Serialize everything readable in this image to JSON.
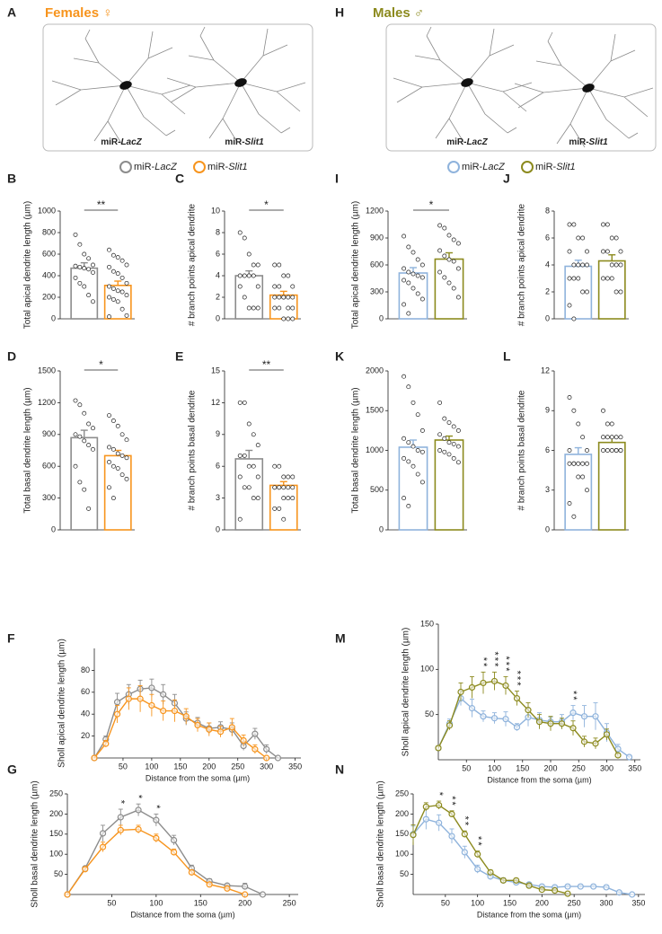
{
  "sexes": [
    {
      "letter": "A",
      "title": "Females ♀",
      "color": "#f7941d",
      "image_labels": [
        "miR-LacZ",
        "miR-Slit1"
      ],
      "legend": [
        {
          "name": "miR-LacZ",
          "color": "#8c8c8c"
        },
        {
          "name": "miR-Slit1",
          "color": "#f7941d"
        }
      ]
    },
    {
      "letter": "H",
      "title": "Males ♂",
      "color": "#8c8a1e",
      "image_labels": [
        "miR-LacZ",
        "miR-Slit1"
      ],
      "legend": [
        {
          "name": "miR-LacZ",
          "color": "#8fb3dc"
        },
        {
          "name": "miR-Slit1",
          "color": "#8c8a1e"
        }
      ]
    }
  ],
  "chart_data": [
    {
      "type": "bar",
      "panel": "B",
      "ylabel": "Total apical dendrite length (µm)",
      "colors": [
        "#8c8c8c",
        "#f7941d"
      ],
      "values": [
        470,
        310
      ],
      "errors": [
        50,
        40
      ],
      "significance": "**",
      "points": [
        [
          780,
          690,
          600,
          560,
          500,
          490,
          480,
          470,
          460,
          430,
          380,
          330,
          300,
          220,
          160
        ],
        [
          640,
          590,
          570,
          540,
          500,
          480,
          440,
          420,
          380,
          330,
          300,
          280,
          260,
          250,
          220,
          200,
          180,
          160,
          90,
          30,
          20
        ]
      ],
      "ylim": [
        0,
        1000
      ],
      "yticks": [
        0,
        200,
        400,
        600,
        800,
        1000
      ]
    },
    {
      "type": "bar",
      "panel": "C",
      "ylabel": "# branch points apical dendrite",
      "colors": [
        "#8c8c8c",
        "#f7941d"
      ],
      "values": [
        4.0,
        2.2
      ],
      "errors": [
        0.45,
        0.35
      ],
      "significance": "*",
      "points": [
        [
          8,
          7.5,
          6,
          5,
          5,
          4,
          4,
          4,
          4,
          3,
          3,
          2,
          1,
          1,
          1
        ],
        [
          5,
          5,
          4,
          4,
          3,
          3,
          3,
          2,
          2,
          2,
          2,
          2,
          2,
          1,
          1,
          1,
          1,
          0,
          0,
          0
        ]
      ],
      "ylim": [
        0,
        10
      ],
      "yticks": [
        0,
        2,
        4,
        6,
        8,
        10
      ]
    },
    {
      "type": "bar",
      "panel": "I",
      "ylabel": "Total apical dendrite length (µm)",
      "colors": [
        "#8fb3dc",
        "#8c8a1e"
      ],
      "values": [
        510,
        665
      ],
      "errors": [
        60,
        70
      ],
      "significance": "*",
      "points": [
        [
          920,
          800,
          740,
          660,
          600,
          560,
          520,
          500,
          480,
          460,
          430,
          400,
          340,
          280,
          220,
          160,
          60
        ],
        [
          1040,
          1010,
          930,
          880,
          840,
          760,
          700,
          660,
          640,
          560,
          520,
          460,
          400,
          340,
          240
        ]
      ],
      "ylim": [
        0,
        1200
      ],
      "yticks": [
        0,
        300,
        600,
        900,
        1200
      ]
    },
    {
      "type": "bar",
      "panel": "J",
      "ylabel": "# branch points apical dendrite",
      "colors": [
        "#8fb3dc",
        "#8c8a1e"
      ],
      "values": [
        3.9,
        4.3
      ],
      "errors": [
        0.45,
        0.45
      ],
      "points": [
        [
          7,
          7,
          6,
          6,
          5,
          5,
          4,
          4,
          4,
          4,
          3,
          3,
          3,
          2,
          2,
          1,
          0
        ],
        [
          7,
          7,
          6,
          6,
          5,
          5,
          5,
          4,
          4,
          4,
          3,
          3,
          3,
          2,
          2
        ]
      ],
      "ylim": [
        0,
        8
      ],
      "yticks": [
        0,
        2,
        4,
        6,
        8
      ]
    },
    {
      "type": "bar",
      "panel": "D",
      "ylabel": "Total basal dendrite length (µm)",
      "colors": [
        "#8c8c8c",
        "#f7941d"
      ],
      "values": [
        870,
        700
      ],
      "errors": [
        70,
        50
      ],
      "significance": "*",
      "points": [
        [
          1220,
          1180,
          1100,
          1000,
          960,
          900,
          880,
          840,
          800,
          760,
          600,
          450,
          380,
          200
        ],
        [
          1080,
          1030,
          980,
          900,
          850,
          780,
          760,
          720,
          700,
          680,
          640,
          600,
          580,
          520,
          480,
          400,
          300
        ]
      ],
      "ylim": [
        0,
        1500
      ],
      "yticks": [
        0,
        300,
        600,
        900,
        1200,
        1500
      ]
    },
    {
      "type": "bar",
      "panel": "E",
      "ylabel": "# branch points basal dendrite",
      "colors": [
        "#8c8c8c",
        "#f7941d"
      ],
      "values": [
        6.7,
        4.2
      ],
      "errors": [
        0.8,
        0.35
      ],
      "significance": "**",
      "points": [
        [
          12,
          12,
          10,
          9,
          8,
          7,
          7,
          6,
          6,
          5,
          5,
          4,
          4,
          3,
          3,
          1
        ],
        [
          6,
          6,
          5,
          5,
          5,
          4,
          4,
          4,
          4,
          4,
          4,
          4,
          3,
          3,
          3,
          2,
          2,
          1
        ]
      ],
      "ylim": [
        0,
        15
      ],
      "yticks": [
        0,
        3,
        6,
        9,
        12,
        15
      ]
    },
    {
      "type": "bar",
      "panel": "K",
      "ylabel": "Total basal dendrite length (µm)",
      "colors": [
        "#8fb3dc",
        "#8c8a1e"
      ],
      "values": [
        1040,
        1130
      ],
      "errors": [
        90,
        50
      ],
      "points": [
        [
          1930,
          1800,
          1600,
          1450,
          1250,
          1150,
          1100,
          1050,
          1000,
          980,
          900,
          860,
          800,
          700,
          600,
          400,
          300
        ],
        [
          1600,
          1400,
          1350,
          1300,
          1250,
          1200,
          1150,
          1100,
          1080,
          1050,
          1000,
          980,
          950,
          900,
          850
        ]
      ],
      "ylim": [
        0,
        2000
      ],
      "yticks": [
        0,
        500,
        1000,
        1500,
        2000
      ]
    },
    {
      "type": "bar",
      "panel": "L",
      "ylabel": "# branch points basal dendrite",
      "colors": [
        "#8fb3dc",
        "#8c8a1e"
      ],
      "values": [
        5.7,
        6.6
      ],
      "errors": [
        0.5,
        0.4
      ],
      "points": [
        [
          10,
          9,
          8,
          7,
          6,
          6,
          5,
          5,
          5,
          5,
          5,
          5,
          4,
          4,
          3,
          2,
          1
        ],
        [
          9,
          8,
          8,
          7,
          7,
          7,
          7,
          7,
          6,
          6,
          6,
          6,
          6,
          6,
          6
        ]
      ],
      "ylim": [
        0,
        12
      ],
      "yticks": [
        0,
        3,
        6,
        9,
        12
      ]
    },
    {
      "type": "line",
      "panel": "F",
      "ylabel": "Sholl apical dendrite length (µm)",
      "xlabel": "Distance from the soma (µm)",
      "x": [
        0,
        20,
        40,
        60,
        80,
        100,
        120,
        140,
        160,
        180,
        200,
        220,
        240,
        260,
        280,
        300,
        320
      ],
      "series": [
        {
          "color": "#8c8c8c",
          "values": [
            0,
            17,
            51,
            58,
            63,
            64,
            58,
            50,
            36,
            32,
            27,
            28,
            26,
            11,
            22,
            8,
            0
          ],
          "errors": [
            0,
            3,
            8,
            9,
            8,
            8,
            9,
            8,
            6,
            5,
            5,
            5,
            6,
            4,
            5,
            4,
            0
          ]
        },
        {
          "color": "#f7941d",
          "values": [
            0,
            13,
            40,
            54,
            54,
            48,
            43,
            43,
            38,
            30,
            26,
            24,
            28,
            16,
            8,
            0,
            null
          ],
          "errors": [
            0,
            3,
            8,
            10,
            12,
            10,
            9,
            10,
            7,
            6,
            6,
            5,
            8,
            5,
            4,
            0,
            null
          ]
        }
      ],
      "annotations": [],
      "xlim": [
        0,
        360
      ],
      "xticks": [
        50,
        100,
        150,
        200,
        250,
        300,
        350
      ],
      "ylim": [
        0,
        100
      ],
      "yticks": [
        20,
        40,
        60,
        80
      ]
    },
    {
      "type": "line",
      "panel": "M",
      "ylabel": "Sholl apical dendrite length (µm)",
      "xlabel": "Distance from the soma (µm)",
      "x": [
        0,
        20,
        40,
        60,
        80,
        100,
        120,
        140,
        160,
        180,
        200,
        220,
        240,
        260,
        280,
        300,
        320,
        340
      ],
      "series": [
        {
          "color": "#8fb3dc",
          "values": [
            13,
            40,
            68,
            57,
            48,
            46,
            45,
            36,
            47,
            44,
            42,
            42,
            52,
            48,
            48,
            30,
            12,
            3
          ],
          "errors": [
            2,
            5,
            8,
            10,
            6,
            6,
            8,
            4,
            10,
            8,
            5,
            8,
            8,
            12,
            15,
            10,
            5,
            1
          ]
        },
        {
          "color": "#8c8a1e",
          "values": [
            13,
            38,
            75,
            80,
            85,
            87,
            82,
            68,
            55,
            42,
            40,
            40,
            35,
            20,
            18,
            28,
            5,
            null
          ],
          "errors": [
            2,
            5,
            10,
            12,
            12,
            10,
            10,
            8,
            8,
            8,
            8,
            6,
            8,
            6,
            6,
            6,
            2,
            null
          ]
        }
      ],
      "annotations": [
        {
          "x": 80,
          "text": "**"
        },
        {
          "x": 100,
          "text": "***"
        },
        {
          "x": 120,
          "text": "***"
        },
        {
          "x": 140,
          "text": "***"
        },
        {
          "x": 240,
          "text": "**"
        }
      ],
      "xlim": [
        0,
        360
      ],
      "xticks": [
        50,
        100,
        150,
        200,
        250,
        300,
        350
      ],
      "ylim": [
        0,
        150
      ],
      "yticks": [
        50,
        100,
        150
      ]
    },
    {
      "type": "line",
      "panel": "G",
      "ylabel": "Sholl basal dendrite length (µm)",
      "xlabel": "Distance from the soma (µm)",
      "x": [
        0,
        20,
        40,
        60,
        80,
        100,
        120,
        140,
        160,
        180,
        200,
        220
      ],
      "series": [
        {
          "color": "#8c8c8c",
          "values": [
            0,
            65,
            152,
            192,
            210,
            185,
            135,
            65,
            33,
            22,
            20,
            0
          ],
          "errors": [
            0,
            5,
            20,
            20,
            15,
            15,
            12,
            8,
            6,
            5,
            8,
            0
          ]
        },
        {
          "color": "#f7941d",
          "values": [
            0,
            63,
            118,
            160,
            162,
            140,
            105,
            55,
            25,
            15,
            0,
            null
          ],
          "errors": [
            0,
            4,
            12,
            12,
            10,
            10,
            8,
            6,
            5,
            4,
            0,
            null
          ]
        }
      ],
      "annotations": [
        {
          "x": 60,
          "text": "*"
        },
        {
          "x": 80,
          "text": "*"
        },
        {
          "x": 100,
          "text": "*"
        }
      ],
      "xlim": [
        0,
        260
      ],
      "xticks": [
        50,
        100,
        150,
        200,
        250
      ],
      "ylim": [
        0,
        250
      ],
      "yticks": [
        50,
        100,
        150,
        200,
        250
      ]
    },
    {
      "type": "line",
      "panel": "N",
      "ylabel": "Sholl basal dendrite length (µm)",
      "xlabel": "Distance from the soma (µm)",
      "x": [
        0,
        20,
        40,
        60,
        80,
        100,
        120,
        140,
        160,
        180,
        200,
        220,
        240,
        260,
        280,
        300,
        320,
        340
      ],
      "series": [
        {
          "color": "#8fb3dc",
          "values": [
            150,
            187,
            178,
            145,
            105,
            63,
            45,
            35,
            30,
            25,
            20,
            18,
            20,
            20,
            20,
            18,
            5,
            0
          ],
          "errors": [
            20,
            25,
            20,
            18,
            15,
            10,
            8,
            6,
            5,
            5,
            4,
            4,
            3,
            3,
            3,
            3,
            2,
            0
          ]
        },
        {
          "color": "#8c8a1e",
          "values": [
            148,
            218,
            222,
            200,
            150,
            100,
            55,
            35,
            35,
            22,
            12,
            10,
            2,
            null,
            null,
            null,
            null,
            null
          ],
          "errors": [
            25,
            10,
            10,
            8,
            8,
            8,
            6,
            5,
            5,
            4,
            3,
            2,
            1,
            null,
            null,
            null,
            null,
            null
          ]
        }
      ],
      "annotations": [
        {
          "x": 40,
          "text": "*"
        },
        {
          "x": 60,
          "text": "**"
        },
        {
          "x": 80,
          "text": "**"
        },
        {
          "x": 100,
          "text": "**"
        }
      ],
      "xlim": [
        0,
        360
      ],
      "xticks": [
        50,
        100,
        150,
        200,
        250,
        300,
        350
      ],
      "ylim": [
        0,
        250
      ],
      "yticks": [
        50,
        100,
        150,
        200,
        250
      ]
    }
  ]
}
